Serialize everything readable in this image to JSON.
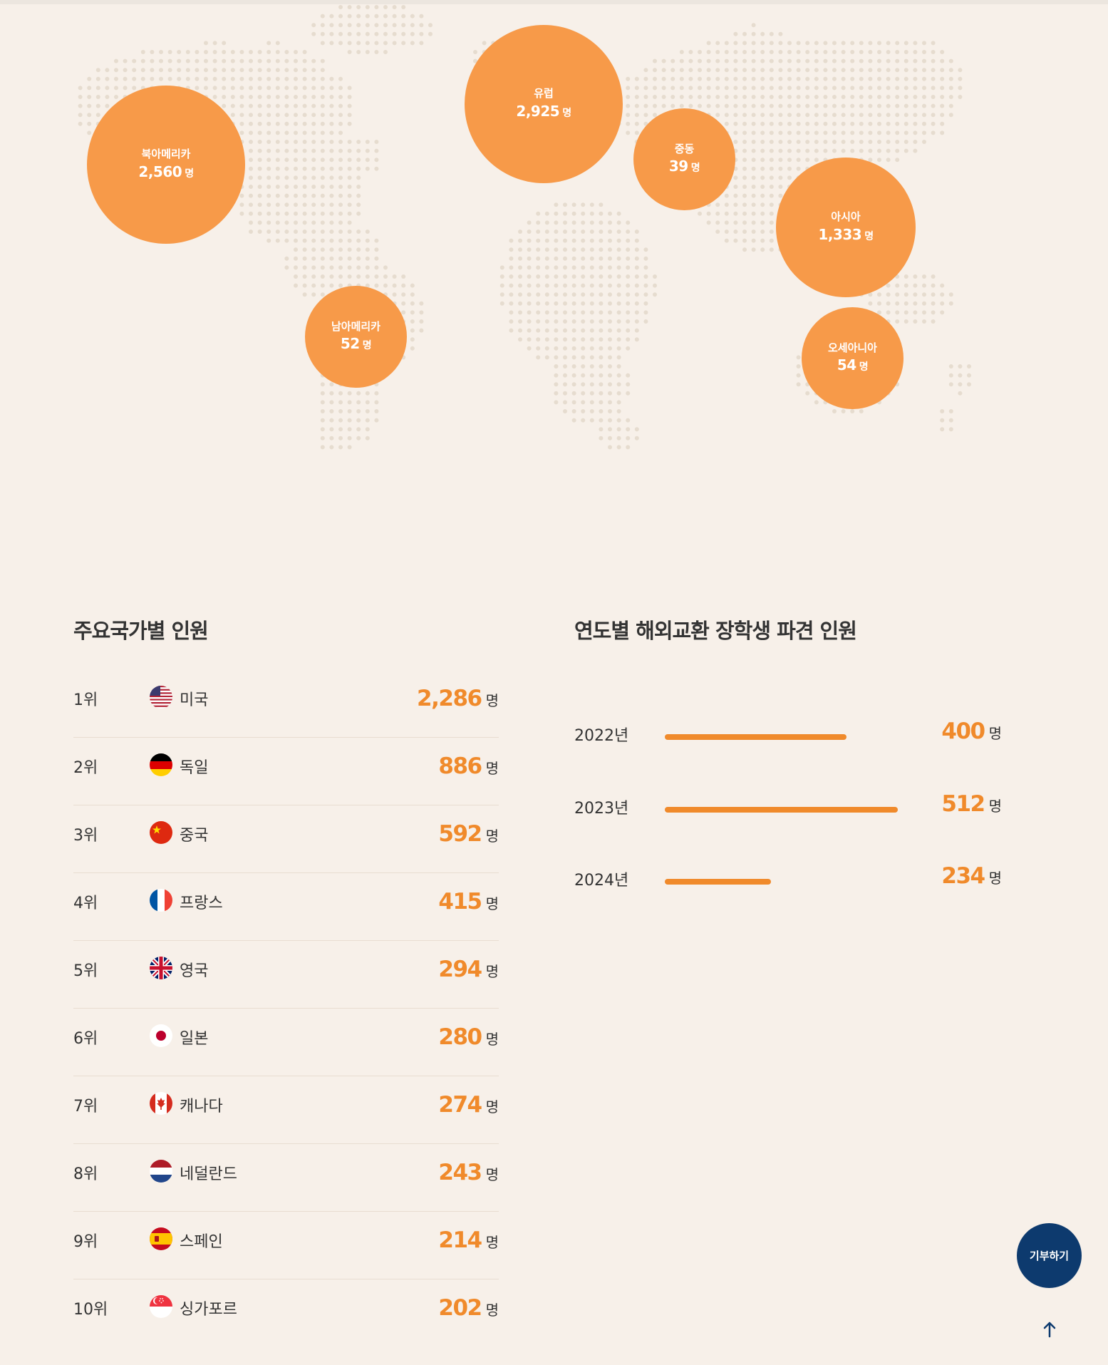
{
  "regions_map": {
    "regions": [
      {
        "name": "북아메리카",
        "value": "2,560",
        "unit": "명"
      },
      {
        "name": "남아메리카",
        "value": "52",
        "unit": "명"
      },
      {
        "name": "유럽",
        "value": "2,925",
        "unit": "명"
      },
      {
        "name": "중동",
        "value": "39",
        "unit": "명"
      },
      {
        "name": "아시아",
        "value": "1,333",
        "unit": "명"
      },
      {
        "name": "오세아니아",
        "value": "54",
        "unit": "명"
      }
    ],
    "colors": {
      "bubble": "#f79a49",
      "dots": "#e6dccf"
    }
  },
  "countries_section": {
    "title": "주요국가별 인원",
    "unit": "명",
    "items": [
      {
        "rank": "1위",
        "country": "미국",
        "value": "2,286",
        "flag": "us-flag-icon"
      },
      {
        "rank": "2위",
        "country": "독일",
        "value": "886",
        "flag": "germany-flag-icon"
      },
      {
        "rank": "3위",
        "country": "중국",
        "value": "592",
        "flag": "china-flag-icon"
      },
      {
        "rank": "4위",
        "country": "프랑스",
        "value": "415",
        "flag": "france-flag-icon"
      },
      {
        "rank": "5위",
        "country": "영국",
        "value": "294",
        "flag": "uk-flag-icon"
      },
      {
        "rank": "6위",
        "country": "일본",
        "value": "280",
        "flag": "japan-flag-icon"
      },
      {
        "rank": "7위",
        "country": "캐나다",
        "value": "274",
        "flag": "canada-flag-icon"
      },
      {
        "rank": "8위",
        "country": "네덜란드",
        "value": "243",
        "flag": "netherlands-flag-icon"
      },
      {
        "rank": "9위",
        "country": "스페인",
        "value": "214",
        "flag": "spain-flag-icon"
      },
      {
        "rank": "10위",
        "country": "싱가포르",
        "value": "202",
        "flag": "singapore-flag-icon"
      }
    ]
  },
  "yearly_section": {
    "title": "연도별 해외교환 장학생 파견 인원"
  },
  "chart_data": {
    "type": "bar",
    "orientation": "horizontal",
    "categories": [
      "2022년",
      "2023년",
      "2024년"
    ],
    "values": [
      400,
      512,
      234
    ],
    "value_labels": [
      "400",
      "512",
      "234"
    ],
    "unit": "명",
    "xlim": [
      0,
      512
    ],
    "grid": false,
    "color": "#f08a2b"
  },
  "floating": {
    "donate_label": "기부하기",
    "top_icon": "arrow-up-icon"
  },
  "colors": {
    "background": "#f7f0e9",
    "accent": "#f08a2b",
    "donate": "#0d3a6e"
  }
}
